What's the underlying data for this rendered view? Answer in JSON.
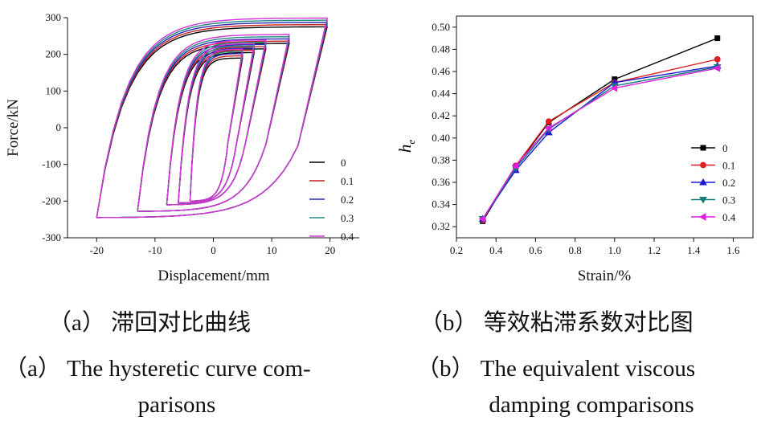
{
  "chart_data": [
    {
      "type": "line",
      "xlabel": "Displacement/mm",
      "ylabel": "Force/kN",
      "xlim": [
        -25,
        25
      ],
      "ylim": [
        -300,
        300
      ],
      "xticks": [
        -20,
        -10,
        0,
        10,
        20
      ],
      "yticks": [
        -300,
        -200,
        -100,
        0,
        100,
        200,
        300
      ],
      "legend_position": "right",
      "series": [
        {
          "name": "0",
          "color": "#000000"
        },
        {
          "name": "0.1",
          "color": "#cc1f1f"
        },
        {
          "name": "0.2",
          "color": "#2a2ab8"
        },
        {
          "name": "0.3",
          "color": "#1e8c84"
        },
        {
          "name": "0.4",
          "color": "#d633d6"
        }
      ],
      "caption_cn": "（a）  滞回对比曲线",
      "caption_en_line1": "（a）  The hysteretic curve com-",
      "caption_en_line2": "parisons"
    },
    {
      "type": "line",
      "xlabel": "Strain/%",
      "ylabel": "h",
      "ylabel_sub": "e",
      "xlim": [
        0.2,
        1.7
      ],
      "ylim": [
        0.31,
        0.51
      ],
      "xticks": [
        0.2,
        0.4,
        0.6,
        0.8,
        1.0,
        1.2,
        1.4,
        1.6
      ],
      "yticks": [
        0.32,
        0.34,
        0.36,
        0.38,
        0.4,
        0.42,
        0.44,
        0.46,
        0.48,
        0.5
      ],
      "legend_position": "right",
      "x": [
        0.333,
        0.5,
        0.667,
        1.0,
        1.52
      ],
      "series": [
        {
          "name": "0",
          "color": "#000000",
          "marker": "square",
          "values": [
            0.325,
            0.374,
            0.414,
            0.453,
            0.49
          ]
        },
        {
          "name": "0.1",
          "color": "#e02020",
          "marker": "circle",
          "values": [
            0.326,
            0.375,
            0.415,
            0.45,
            0.471
          ]
        },
        {
          "name": "0.2",
          "color": "#1a1ad6",
          "marker": "triangle",
          "values": [
            0.327,
            0.371,
            0.405,
            0.45,
            0.465
          ]
        },
        {
          "name": "0.3",
          "color": "#127a78",
          "marker": "tri-down",
          "values": [
            0.327,
            0.373,
            0.408,
            0.447,
            0.464
          ]
        },
        {
          "name": "0.4",
          "color": "#e020e0",
          "marker": "tri-left",
          "values": [
            0.327,
            0.375,
            0.409,
            0.445,
            0.463
          ]
        }
      ],
      "caption_cn": "（b）  等效粘滞系数对比图",
      "caption_en_line1": "（b）  The equivalent viscous",
      "caption_en_line2": "damping comparisons"
    }
  ]
}
